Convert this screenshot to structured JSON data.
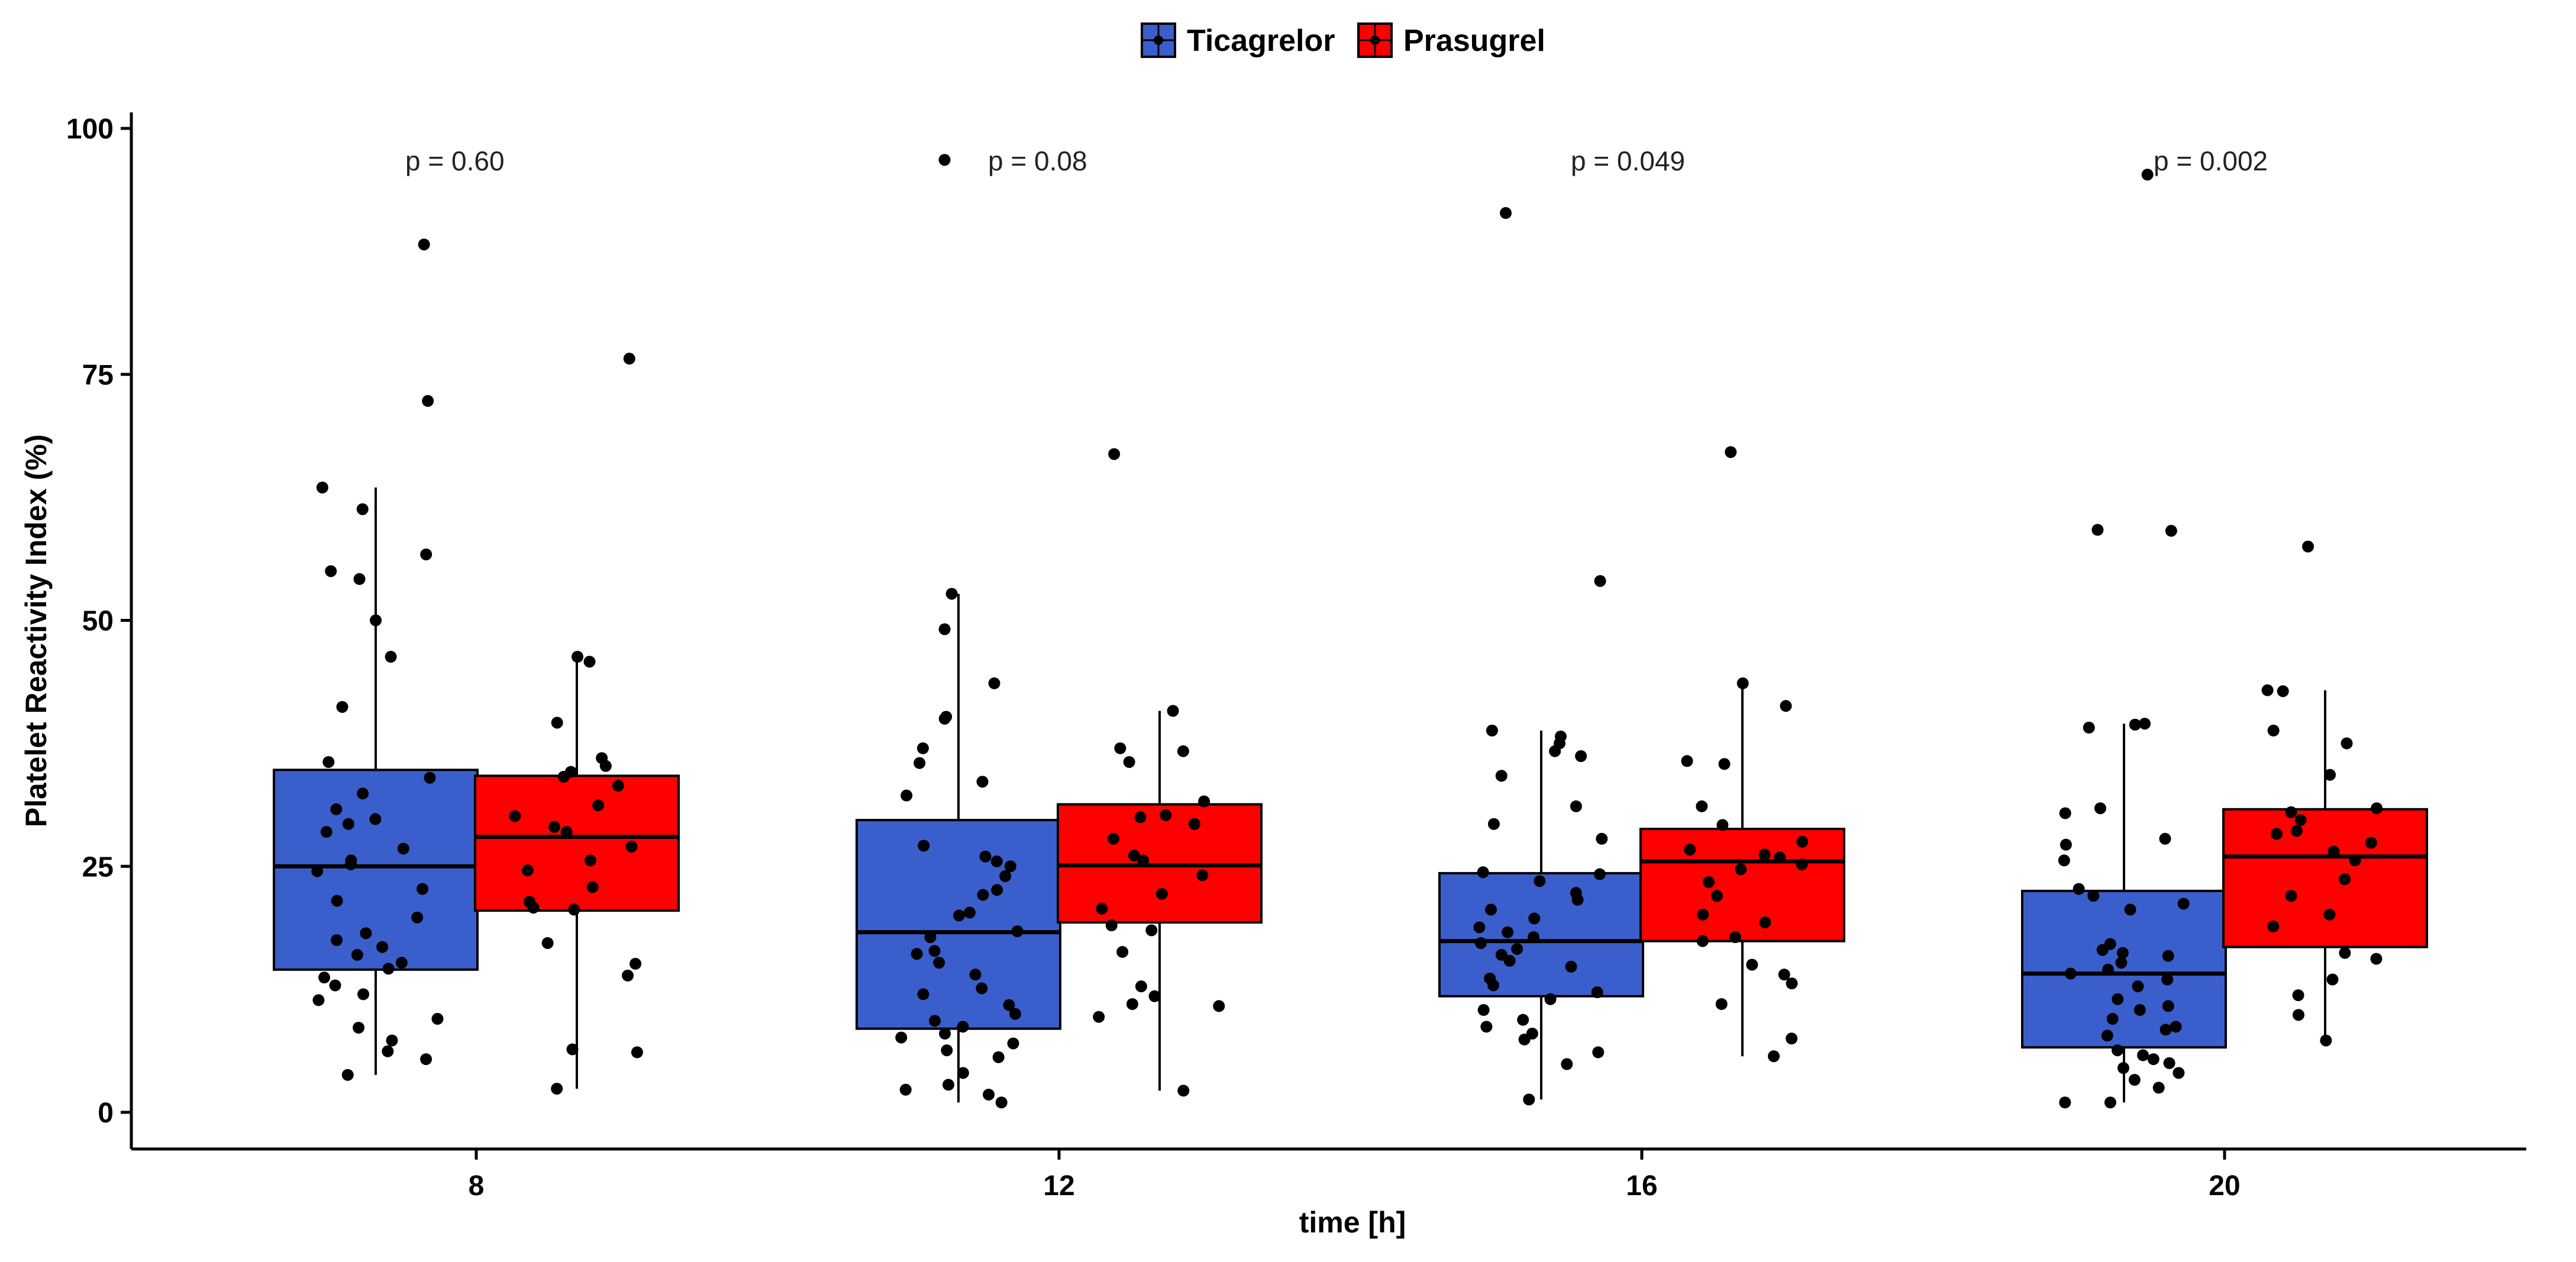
{
  "chart_data": {
    "type": "boxplot",
    "title": "",
    "xlabel": "time [h]",
    "ylabel": "Platelet Reactivity Index (%)",
    "ylim": [
      -4,
      102
    ],
    "yticks": [
      0,
      25,
      50,
      75,
      100
    ],
    "categories": [
      "8",
      "12",
      "16",
      "20"
    ],
    "legend_position": "top",
    "p_values": [
      "p = 0.60",
      "p = 0.08",
      "p = 0.049",
      "p = 0.002"
    ],
    "series": [
      {
        "name": "Ticagrelor",
        "color": "#3a5fcd",
        "boxes": [
          {
            "whisker_low": 3.8,
            "q1": 14.5,
            "median": 25,
            "q3": 34.8,
            "whisker_high": 63.5
          },
          {
            "whisker_low": 1.0,
            "q1": 8.5,
            "median": 18.3,
            "q3": 29.7,
            "whisker_high": 52.7
          },
          {
            "whisker_low": 1.3,
            "q1": 11.8,
            "median": 17.4,
            "q3": 24.3,
            "whisker_high": 38.8
          },
          {
            "whisker_low": 1.0,
            "q1": 6.6,
            "median": 14.1,
            "q3": 22.5,
            "whisker_high": 39.5
          }
        ],
        "points": [
          [
            88.2,
            72.3,
            63.5,
            61.3,
            56.7,
            55.0,
            54.2,
            50.0,
            46.3,
            41.2,
            35.6,
            34.0,
            32.4,
            30.8,
            29.8,
            29.3,
            28.5,
            26.8,
            25.6,
            25.2,
            24.5,
            22.7,
            21.5,
            19.8,
            18.2,
            17.5,
            16.8,
            16.0,
            15.2,
            14.6,
            13.7,
            12.9,
            12.0,
            11.4,
            9.5,
            8.6,
            7.3,
            6.2,
            5.4,
            3.8
          ],
          [
            96.8,
            52.7,
            49.1,
            43.6,
            40.2,
            40.0,
            37.0,
            35.5,
            33.6,
            32.2,
            27.1,
            26.0,
            25.5,
            25.0,
            24.0,
            22.6,
            22.1,
            20.3,
            20.0,
            18.4,
            17.8,
            16.4,
            16.1,
            15.2,
            14.0,
            12.6,
            12.0,
            10.9,
            10.0,
            9.3,
            8.7,
            8.0,
            7.6,
            7.0,
            6.3,
            5.6,
            4.0,
            2.8,
            2.3,
            1.8,
            1.0
          ],
          [
            91.4,
            54.0,
            38.8,
            38.2,
            37.5,
            36.7,
            36.2,
            34.2,
            31.1,
            29.3,
            27.8,
            24.4,
            24.2,
            23.5,
            22.3,
            21.6,
            20.6,
            19.7,
            18.8,
            18.3,
            17.8,
            17.2,
            16.6,
            16.0,
            15.4,
            14.8,
            13.6,
            12.9,
            12.2,
            11.5,
            10.4,
            9.4,
            8.7,
            8.0,
            7.4,
            6.1,
            4.9,
            1.3
          ],
          [
            95.3,
            59.2,
            59.1,
            39.5,
            39.4,
            39.1,
            30.9,
            30.4,
            27.8,
            27.2,
            25.6,
            22.7,
            22.0,
            21.2,
            20.6,
            17.1,
            16.5,
            16.2,
            15.9,
            15.2,
            14.5,
            14.1,
            13.5,
            12.8,
            11.5,
            10.8,
            10.4,
            9.5,
            8.7,
            8.4,
            7.8,
            6.3,
            5.8,
            5.4,
            5.0,
            4.5,
            4.0,
            3.3,
            2.5,
            1.0,
            1.0
          ]
        ]
      },
      {
        "name": "Prasugrel",
        "color": "#ff0000",
        "boxes": [
          {
            "whisker_low": 2.4,
            "q1": 20.5,
            "median": 28,
            "q3": 34.2,
            "whisker_high": 46.0
          },
          {
            "whisker_low": 2.2,
            "q1": 19.3,
            "median": 25.1,
            "q3": 31.3,
            "whisker_high": 40.8
          },
          {
            "whisker_low": 5.7,
            "q1": 17.4,
            "median": 25.5,
            "q3": 28.8,
            "whisker_high": 43.6
          },
          {
            "whisker_low": 7.3,
            "q1": 16.8,
            "median": 26.0,
            "q3": 30.8,
            "whisker_high": 42.9
          }
        ],
        "points": [
          [
            76.6,
            46.3,
            45.8,
            39.6,
            36.0,
            35.2,
            34.6,
            34.1,
            33.2,
            31.2,
            30.1,
            29.0,
            28.5,
            27.0,
            25.6,
            24.6,
            22.9,
            21.4,
            20.8,
            20.6,
            17.2,
            15.1,
            13.9,
            6.4,
            6.1,
            2.4
          ],
          [
            66.9,
            40.8,
            37.0,
            36.7,
            35.6,
            31.6,
            30.2,
            30.0,
            29.3,
            27.8,
            26.1,
            25.6,
            24.1,
            22.2,
            20.7,
            19.0,
            18.5,
            16.3,
            12.8,
            11.8,
            11.0,
            10.8,
            9.7,
            2.2
          ],
          [
            67.1,
            43.6,
            41.3,
            35.7,
            35.4,
            31.1,
            29.2,
            27.5,
            26.7,
            26.2,
            25.9,
            25.2,
            24.7,
            23.4,
            22.0,
            20.1,
            19.3,
            17.8,
            17.4,
            15.0,
            14.0,
            13.1,
            11.0,
            7.5,
            5.7
          ],
          [
            57.5,
            42.9,
            42.8,
            38.8,
            37.5,
            34.3,
            30.9,
            30.5,
            29.7,
            28.6,
            28.3,
            27.4,
            26.5,
            25.6,
            23.7,
            22.0,
            20.1,
            18.9,
            16.2,
            15.6,
            13.5,
            11.9,
            9.9,
            7.3
          ]
        ]
      }
    ]
  }
}
